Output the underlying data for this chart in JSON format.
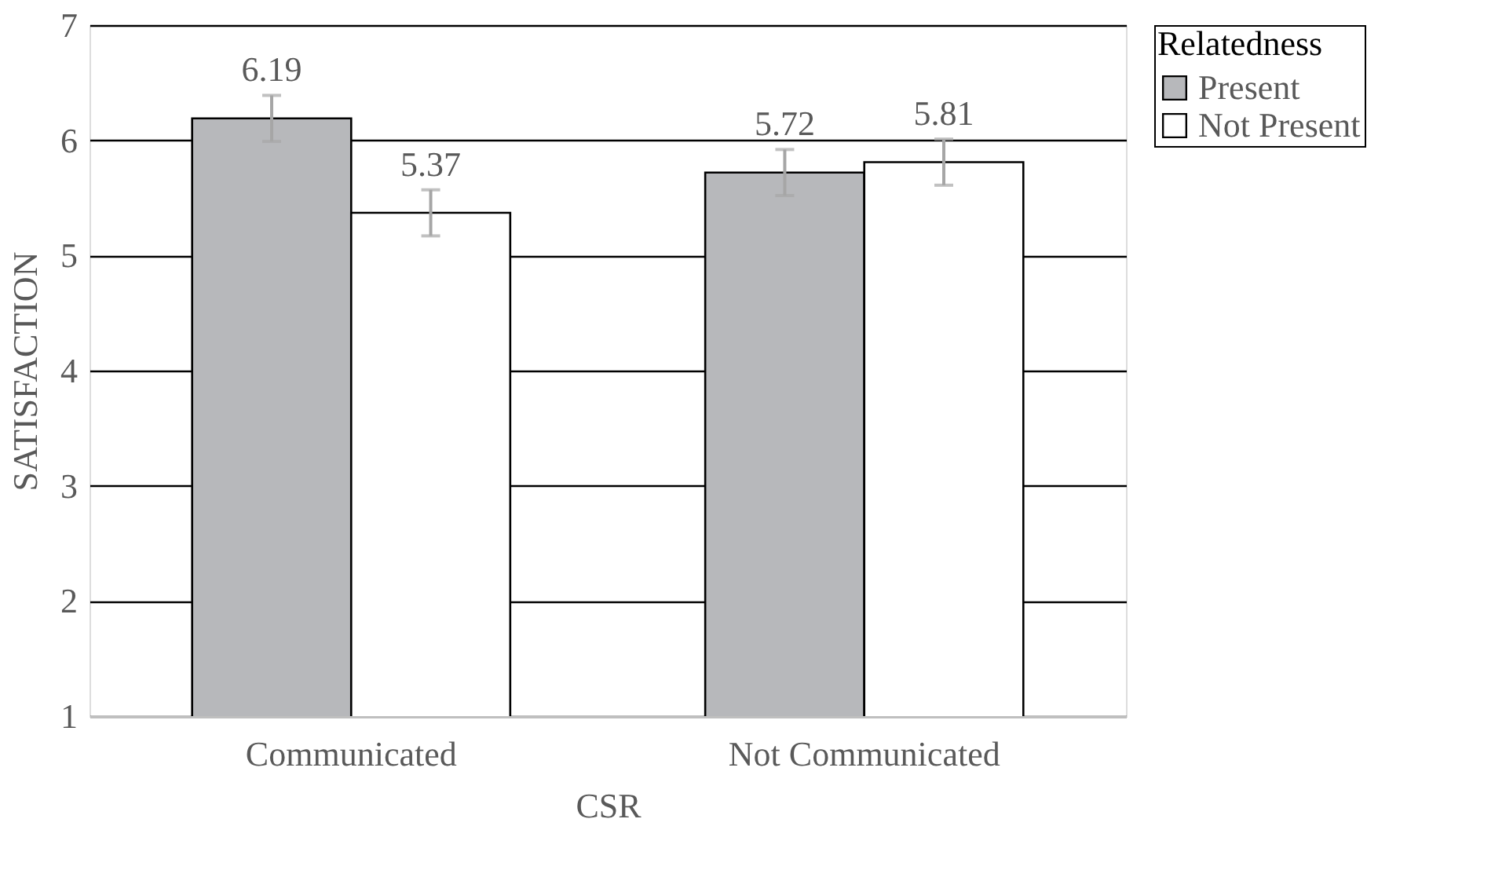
{
  "chart_data": {
    "type": "bar",
    "xlabel": "CSR",
    "ylabel": "SATISFACTION",
    "legend_title": "Relatedness",
    "categories": [
      "Communicated",
      "Not Communicated"
    ],
    "series": [
      {
        "name": "Present",
        "color": "#b7b8bb",
        "values": [
          6.19,
          5.72
        ],
        "errors": [
          0.2,
          0.2
        ]
      },
      {
        "name": "Not Present",
        "color": "#ffffff",
        "values": [
          5.37,
          5.81
        ],
        "errors": [
          0.2,
          0.2
        ]
      }
    ],
    "ylim": [
      1,
      7
    ],
    "yticks": [
      1,
      2,
      3,
      4,
      5,
      6,
      7
    ],
    "grid": "y",
    "legend": "right",
    "data_labels": true
  }
}
